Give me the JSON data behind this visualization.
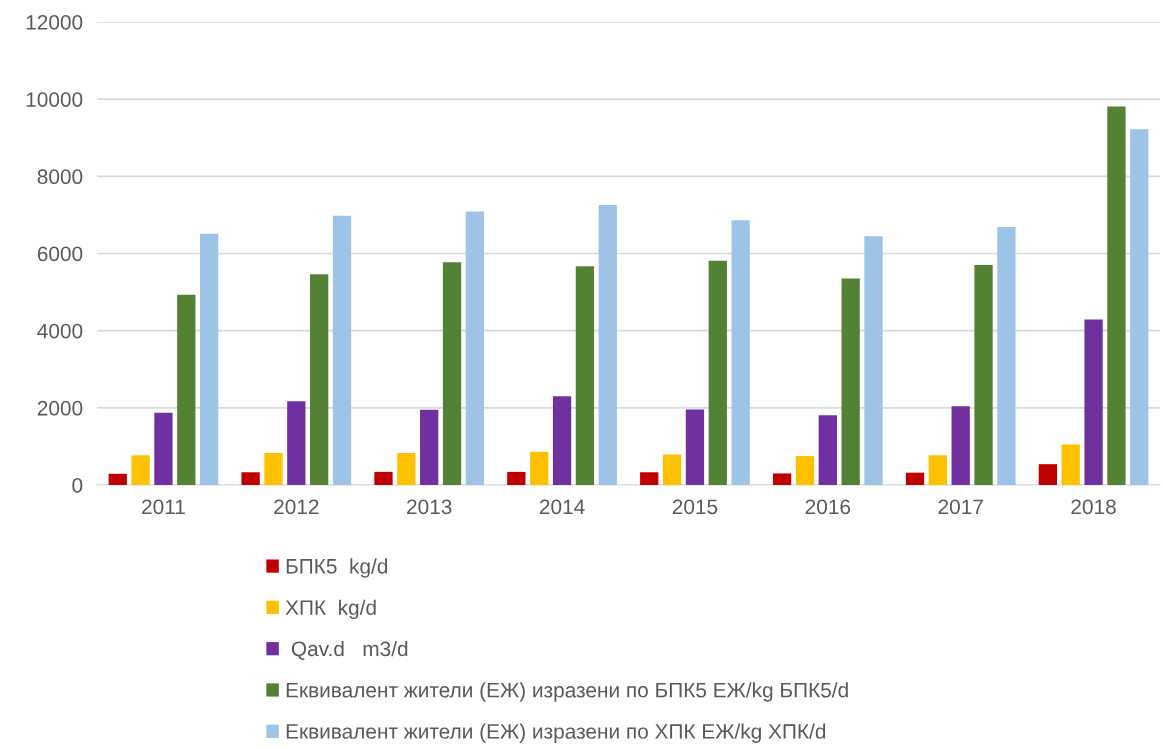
{
  "chart_data": {
    "type": "bar",
    "categories": [
      "2011",
      "2012",
      "2013",
      "2014",
      "2015",
      "2016",
      "2017",
      "2018"
    ],
    "series": [
      {
        "name": "БПК5  kg/d",
        "color": "#c00000",
        "values": [
          290,
          330,
          340,
          340,
          330,
          300,
          320,
          540
        ]
      },
      {
        "name": "ХПК  kg/d",
        "color": "#ffc000",
        "values": [
          770,
          830,
          830,
          860,
          790,
          750,
          770,
          1050
        ]
      },
      {
        "name": " Qav.d   m3/d",
        "color": "#7030a0",
        "values": [
          1870,
          2170,
          1950,
          2300,
          1960,
          1810,
          2040,
          4290
        ]
      },
      {
        "name": "Еквивалент жители (ЕЖ) изразени по БПК5 ЕЖ/kg БПК5/d",
        "color": "#548235",
        "values": [
          4930,
          5460,
          5770,
          5670,
          5810,
          5350,
          5700,
          9810
        ]
      },
      {
        "name": "Еквивалент жители (ЕЖ) изразени по ХПК ЕЖ/kg ХПК/d",
        "color": "#9dc3e6",
        "values": [
          6510,
          6980,
          7090,
          7260,
          6860,
          6450,
          6690,
          9220
        ]
      }
    ],
    "ylim": [
      0,
      12000
    ],
    "yticks": [
      0,
      2000,
      4000,
      6000,
      8000,
      10000,
      12000
    ],
    "grid": "y",
    "legend": "bottom"
  }
}
